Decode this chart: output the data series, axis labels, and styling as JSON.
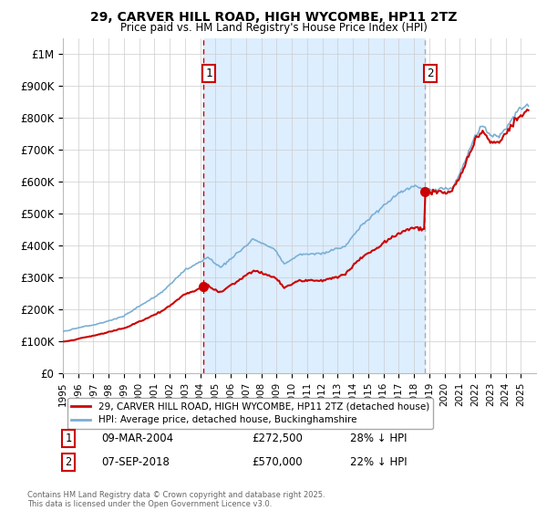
{
  "title": "29, CARVER HILL ROAD, HIGH WYCOMBE, HP11 2TZ",
  "subtitle": "Price paid vs. HM Land Registry's House Price Index (HPI)",
  "ylim": [
    0,
    1050000
  ],
  "yticks": [
    0,
    100000,
    200000,
    300000,
    400000,
    500000,
    600000,
    700000,
    800000,
    900000,
    1000000
  ],
  "ytick_labels": [
    "£0",
    "£100K",
    "£200K",
    "£300K",
    "£400K",
    "£500K",
    "£600K",
    "£700K",
    "£800K",
    "£900K",
    "£1M"
  ],
  "hpi_color": "#7bafd4",
  "price_color": "#cc0000",
  "fill_color": "#ddeeff",
  "marker1_x": 2004.19,
  "marker1_y": 272500,
  "marker2_x": 2018.69,
  "marker2_y": 570000,
  "vline1_x": 2004.19,
  "vline2_x": 2018.69,
  "legend_price": "29, CARVER HILL ROAD, HIGH WYCOMBE, HP11 2TZ (detached house)",
  "legend_hpi": "HPI: Average price, detached house, Buckinghamshire",
  "note1_label": "1",
  "note1_date": "09-MAR-2004",
  "note1_price": "£272,500",
  "note1_pct": "28% ↓ HPI",
  "note2_label": "2",
  "note2_date": "07-SEP-2018",
  "note2_price": "£570,000",
  "note2_pct": "22% ↓ HPI",
  "footer": "Contains HM Land Registry data © Crown copyright and database right 2025.\nThis data is licensed under the Open Government Licence v3.0.",
  "xmin": 1995,
  "xmax": 2026
}
